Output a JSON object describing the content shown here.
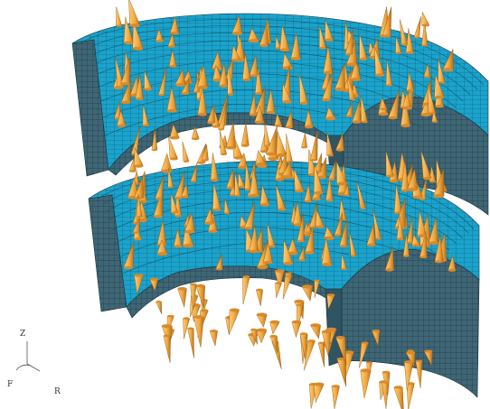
{
  "triad": {
    "z": "Z",
    "f": "F",
    "r": "R"
  },
  "colors": {
    "face": "#1aa3cc",
    "face_dark": "#0f7fa3",
    "wall": "#3a5f6e",
    "wall_light": "#4f7a8a",
    "mesh": "#16333f",
    "cone": "#f0a840",
    "cone_shade": "#b86f18"
  },
  "icons": {
    "axis": "coordinate-triad-icon"
  }
}
